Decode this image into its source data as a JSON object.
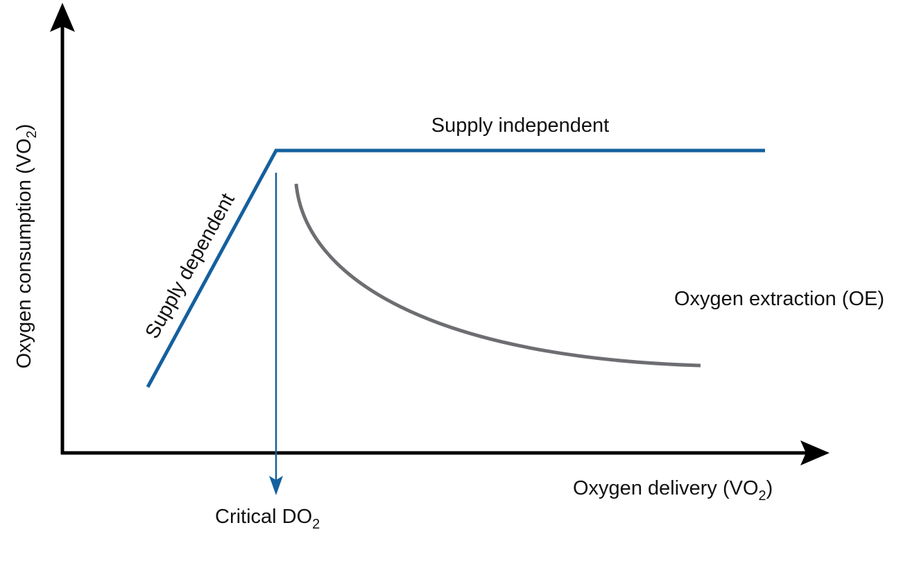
{
  "y_axis_label": {
    "text": "Oxygen consumption (VO",
    "subscript": "2",
    "suffix": ")"
  },
  "x_axis_label": {
    "text": "Oxygen delivery (VO",
    "subscript": "2",
    "suffix": ")"
  },
  "critical_label": {
    "text": "Critical DO",
    "subscript": "2"
  },
  "supply_independent_label": "Supply independent",
  "supply_dependent_label": "Supply dependent",
  "oxygen_extraction_label": "Oxygen extraction (OE)"
}
